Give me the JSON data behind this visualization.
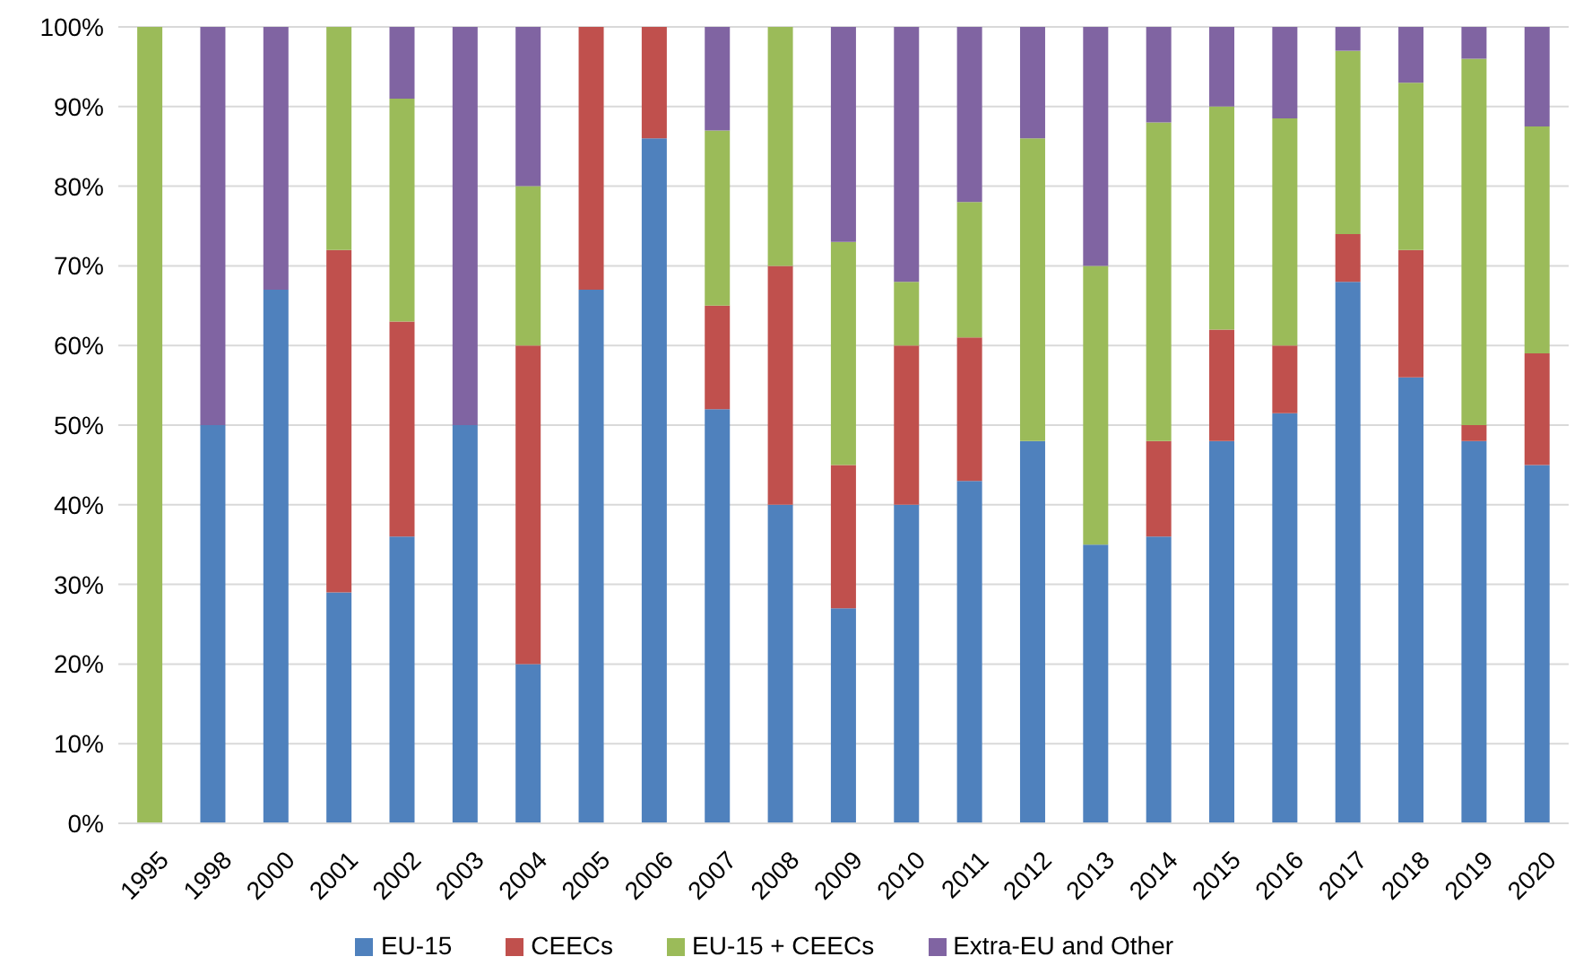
{
  "chart_data": {
    "type": "bar",
    "stacked": true,
    "categories": [
      "1995",
      "1998",
      "2000",
      "2001",
      "2002",
      "2003",
      "2004",
      "2005",
      "2006",
      "2007",
      "2008",
      "2009",
      "2010",
      "2011",
      "2012",
      "2013",
      "2014",
      "2015",
      "2016",
      "2017",
      "2018",
      "2019",
      "2020"
    ],
    "series": [
      {
        "name": "EU-15",
        "color": "#4f81bd",
        "values": [
          0,
          50,
          67,
          29,
          36,
          50,
          20,
          67,
          86,
          52,
          40,
          27,
          40,
          43,
          48,
          35,
          36,
          48,
          51.5,
          68,
          56,
          48,
          45
        ]
      },
      {
        "name": "CEECs",
        "color": "#c0504d",
        "values": [
          0,
          0,
          0,
          43,
          27,
          0,
          40,
          33,
          14,
          13,
          30,
          18,
          20,
          18,
          0,
          0,
          12,
          14,
          8.5,
          6,
          16,
          2,
          14
        ]
      },
      {
        "name": "EU-15 + CEECs",
        "color": "#9bbb59",
        "values": [
          100,
          0,
          0,
          28,
          28,
          0,
          20,
          0,
          0,
          22,
          30,
          28,
          8,
          17,
          38,
          35,
          40,
          28,
          28.5,
          23,
          21,
          46,
          28.5
        ]
      },
      {
        "name": "Extra-EU and Other",
        "color": "#8064a2",
        "values": [
          0,
          50,
          33,
          0,
          9,
          50,
          20,
          0,
          0,
          13,
          0,
          27,
          32,
          22,
          14,
          30,
          12,
          10,
          11.5,
          3,
          7,
          4,
          12.5
        ]
      }
    ],
    "ylim": [
      0,
      100
    ],
    "yticks": [
      {
        "value": 0,
        "label": "0%"
      },
      {
        "value": 10,
        "label": "10%"
      },
      {
        "value": 20,
        "label": "20%"
      },
      {
        "value": 30,
        "label": "30%"
      },
      {
        "value": 40,
        "label": "40%"
      },
      {
        "value": 50,
        "label": "50%"
      },
      {
        "value": 60,
        "label": "60%"
      },
      {
        "value": 70,
        "label": "70%"
      },
      {
        "value": 80,
        "label": "80%"
      },
      {
        "value": 90,
        "label": "90%"
      },
      {
        "value": 100,
        "label": "100%"
      }
    ],
    "grid": "y",
    "legend": "bottom"
  }
}
